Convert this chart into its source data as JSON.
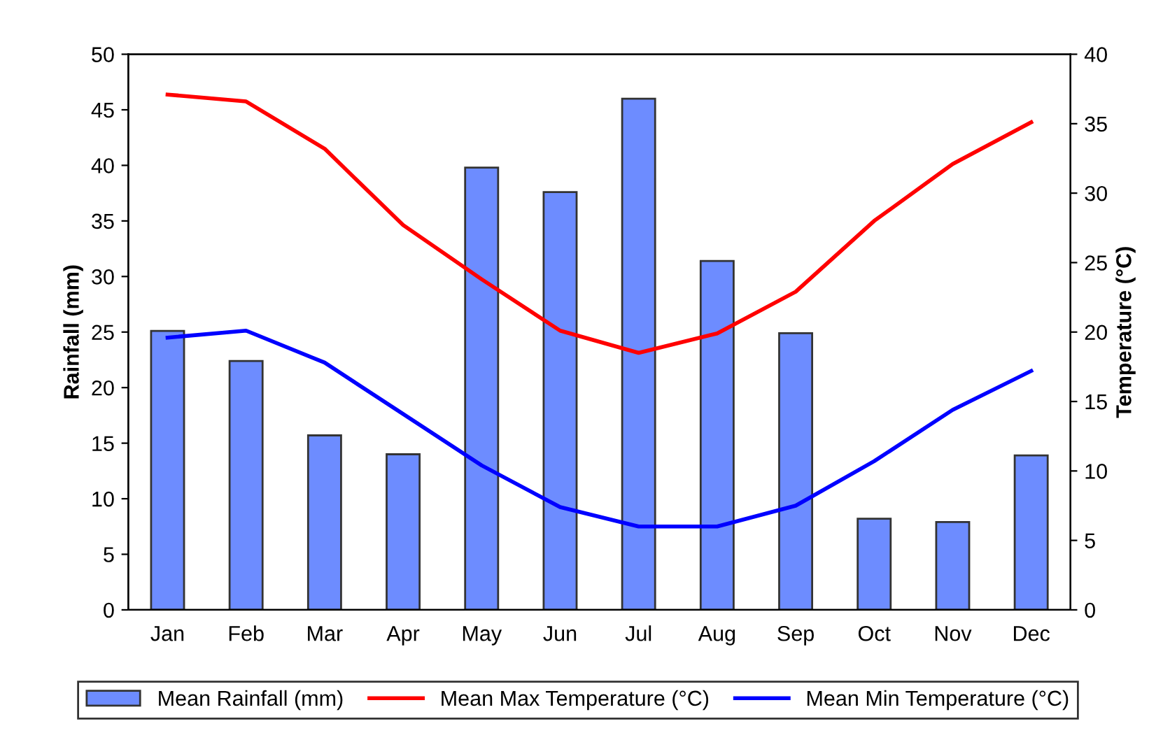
{
  "chart_data": {
    "type": "bar",
    "xlabel": null,
    "ylabel": "Rainfall (mm)",
    "y2label": "Temperature (°C)",
    "categories": [
      "Jan",
      "Feb",
      "Mar",
      "Apr",
      "May",
      "Jun",
      "Jul",
      "Aug",
      "Sep",
      "Oct",
      "Nov",
      "Dec"
    ],
    "series": [
      {
        "name": "Mean Rainfall (mm)",
        "color": "#6d8cff",
        "values": [
          25.1,
          22.4,
          15.7,
          14.0,
          39.8,
          37.6,
          46.0,
          31.4,
          24.9,
          8.2,
          7.9,
          13.9
        ]
      },
      {
        "name": "Mean Max Temperature (°C)",
        "type": "line",
        "axis": "y2",
        "color": "#ff0000",
        "values": [
          37.1,
          36.6,
          33.2,
          27.7,
          23.8,
          20.1,
          18.5,
          19.9,
          22.9,
          28.0,
          32.1,
          35.1
        ]
      },
      {
        "name": "Mean Min Temperature (°C)",
        "type": "line",
        "axis": "y2",
        "color": "#0000ff",
        "values": [
          19.6,
          20.1,
          17.8,
          14.1,
          10.4,
          7.4,
          6.0,
          6.0,
          7.5,
          10.7,
          14.4,
          17.2
        ]
      }
    ],
    "ylim": [
      0,
      50
    ],
    "yticks": [
      0,
      5,
      10,
      15,
      20,
      25,
      30,
      35,
      40,
      45,
      50
    ],
    "y2lim": [
      0,
      40
    ],
    "y2ticks": [
      0,
      5,
      10,
      15,
      20,
      25,
      30,
      35,
      40
    ],
    "grid": false,
    "legend": "bottom",
    "marker": "none",
    "line_style": "solid"
  }
}
